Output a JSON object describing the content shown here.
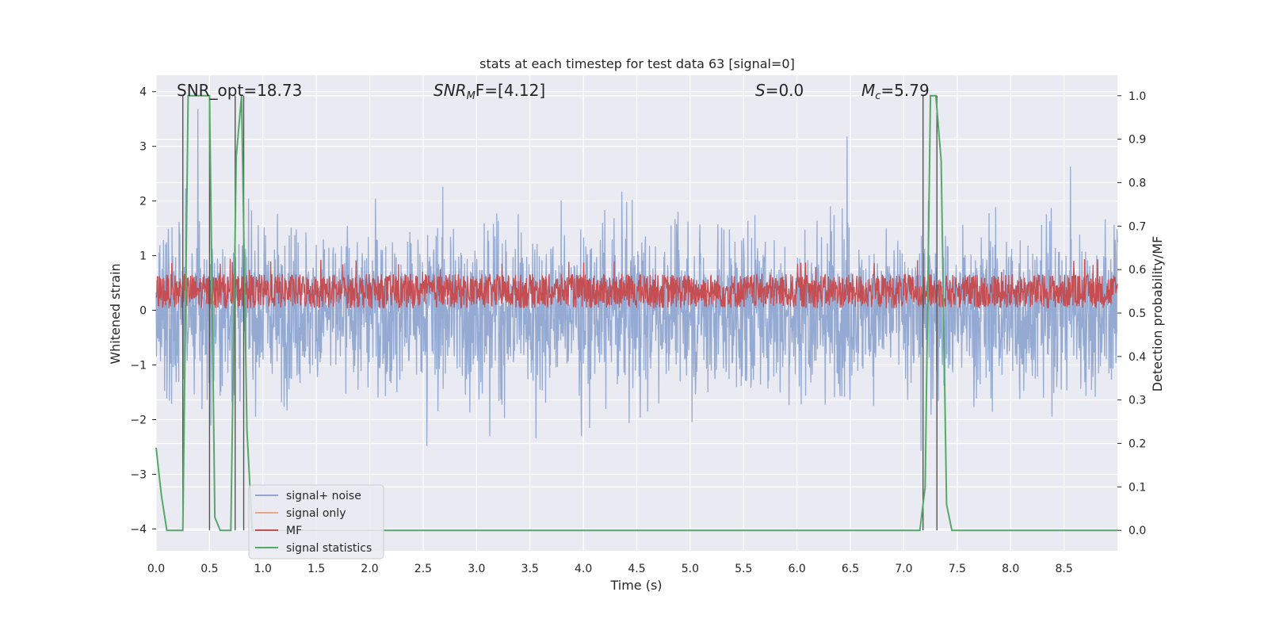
{
  "chart_data": {
    "type": "line",
    "title": "stats at each timestep for test data 63 [signal=0]",
    "xlabel": "Time (s)",
    "ylabel": "Whitened strain",
    "y2label": "Detection probability/MF",
    "xlim": [
      0,
      9.0
    ],
    "ylim": [
      -4.4,
      4.3
    ],
    "y2lim": [
      -0.047,
      1.047
    ],
    "xticks": [
      "0.0",
      "0.5",
      "1.0",
      "1.5",
      "2.0",
      "2.5",
      "3.0",
      "3.5",
      "4.0",
      "4.5",
      "5.0",
      "5.5",
      "6.0",
      "6.5",
      "7.0",
      "7.5",
      "8.0",
      "8.5"
    ],
    "yticks": [
      "−4",
      "−3",
      "−2",
      "−1",
      "0",
      "1",
      "2",
      "3",
      "4"
    ],
    "y2ticks": [
      "0.0",
      "0.1",
      "0.2",
      "0.3",
      "0.4",
      "0.5",
      "0.6",
      "0.7",
      "0.8",
      "0.9",
      "1.0"
    ],
    "grid": true,
    "legend_position": "lower-left",
    "annotations": {
      "snr_opt": "SNR_opt=18.73",
      "snr_mf_main": "SNR",
      "snr_mf_sub": "M",
      "snr_mf_rest": "F=[4.12]",
      "s_main": "S",
      "s_rest": "=0.0",
      "mc_main": "M",
      "mc_sub": "c",
      "mc_rest": "=5.79"
    },
    "series": [
      {
        "name": "signal+ noise",
        "color": "#8fa6d1",
        "axis": "left",
        "envelope_typical": [
          -1.6,
          1.6
        ],
        "peak_range": [
          -4.0,
          3.9
        ]
      },
      {
        "name": "signal only",
        "color": "#e8a887",
        "axis": "left",
        "values": []
      },
      {
        "name": "MF",
        "color": "#c44e52",
        "axis": "left",
        "band": [
          0.0,
          0.7
        ]
      },
      {
        "name": "signal statistics",
        "color": "#55a868",
        "axis": "right",
        "x": [
          0.0,
          0.05,
          0.1,
          0.15,
          0.2,
          0.25,
          0.3,
          0.35,
          0.4,
          0.45,
          0.5,
          0.55,
          0.6,
          0.65,
          0.7,
          0.75,
          0.8,
          0.85,
          0.9,
          0.95,
          1.0,
          1.1,
          2.0,
          3.0,
          4.0,
          5.0,
          6.0,
          7.0,
          7.1,
          7.15,
          7.2,
          7.25,
          7.3,
          7.35,
          7.4,
          7.45,
          7.5,
          7.6,
          8.0,
          8.5,
          9.0
        ],
        "y": [
          0.19,
          0.08,
          0.0,
          0.0,
          0.0,
          0.0,
          1.0,
          1.0,
          1.0,
          1.0,
          1.0,
          0.03,
          0.0,
          0.0,
          0.0,
          0.86,
          1.0,
          0.23,
          0.0,
          0.0,
          0.0,
          0.0,
          0.0,
          0.0,
          0.0,
          0.0,
          0.0,
          0.0,
          0.0,
          0.0,
          0.1,
          1.0,
          1.0,
          0.85,
          0.06,
          0.0,
          0.0,
          0.0,
          0.0,
          0.0,
          0.0
        ]
      }
    ],
    "detection_markers_x": [
      0.25,
      0.5,
      0.74,
      0.82,
      7.18,
      7.31
    ]
  }
}
